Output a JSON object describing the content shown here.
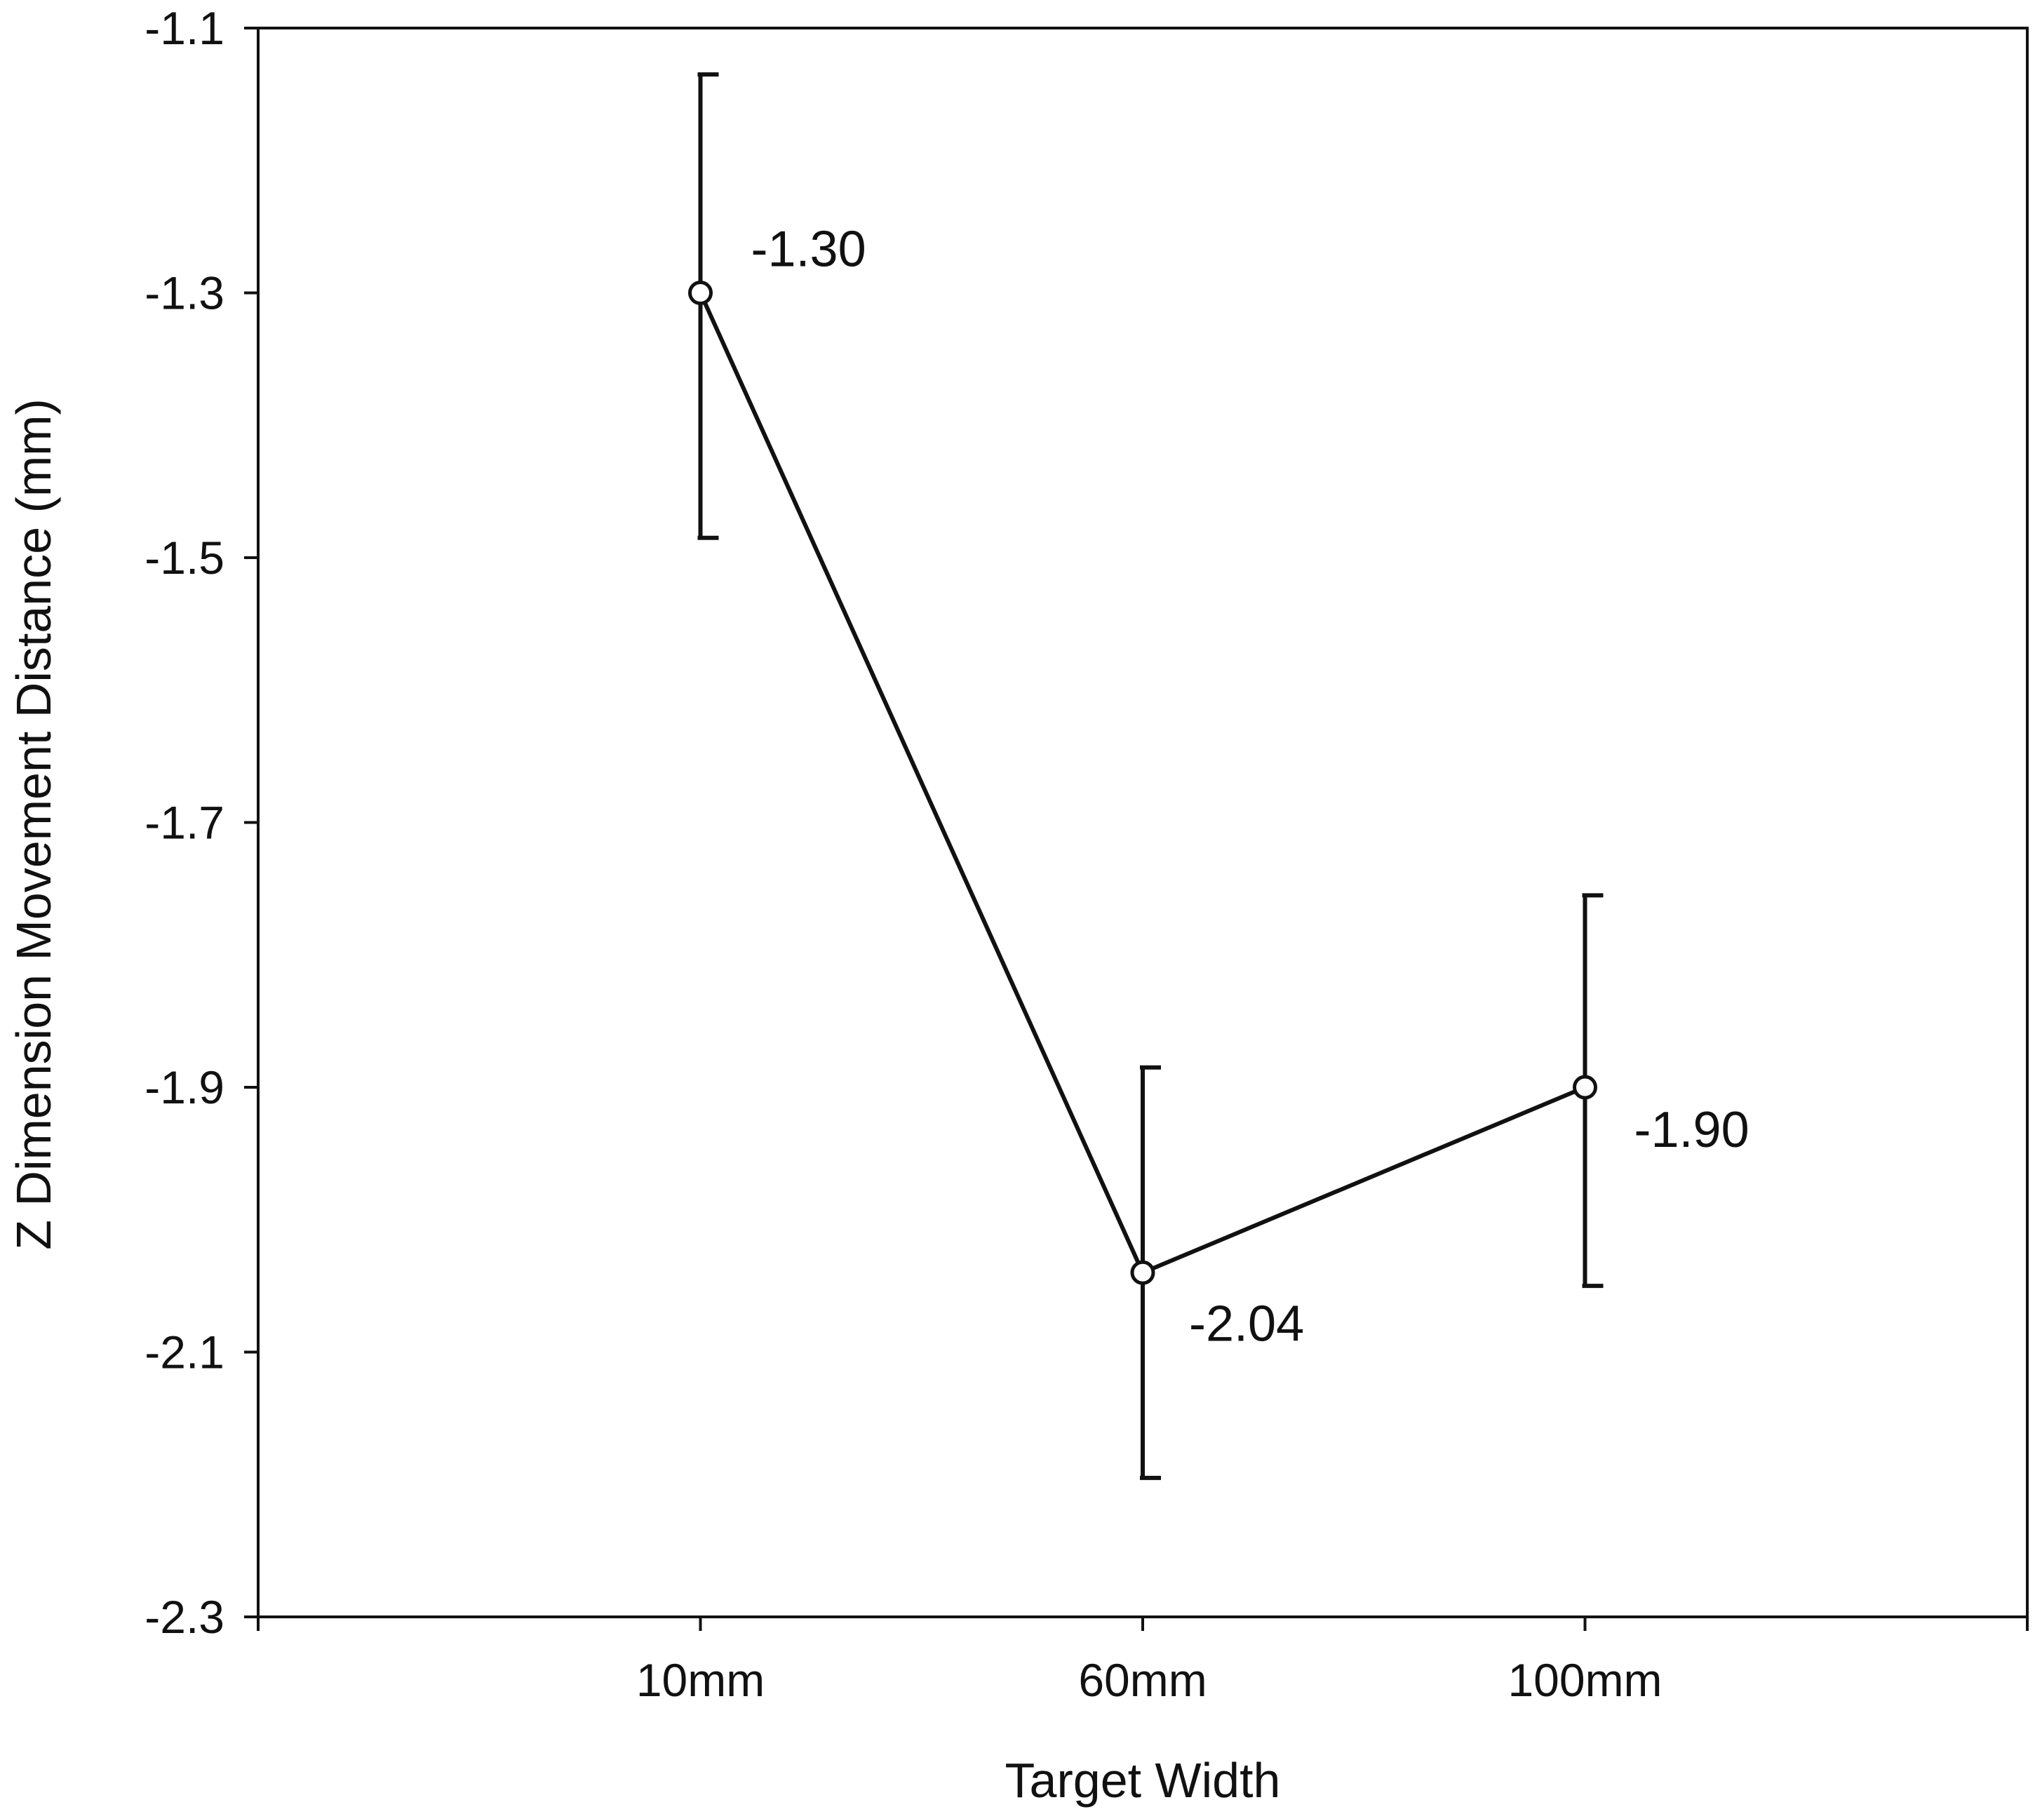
{
  "chart_data": {
    "type": "line",
    "title": "",
    "xlabel": "Target Width",
    "ylabel": "Z Dimension Movement Distance (mm)",
    "categories": [
      "10mm",
      "60mm",
      "100mm"
    ],
    "series": [
      {
        "name": "Z Dimension Movement Distance",
        "values": [
          -1.3,
          -2.04,
          -1.9
        ],
        "error_low": [
          -1.485,
          -2.195,
          -2.05
        ],
        "error_high": [
          -1.135,
          -1.885,
          -1.755
        ],
        "labels": [
          "-1.30",
          "-2.04",
          "-1.90"
        ]
      }
    ],
    "ylim": [
      -2.3,
      -1.1
    ],
    "yticks": [
      -1.1,
      -1.3,
      -1.5,
      -1.7,
      -1.9,
      -2.1,
      -2.3
    ],
    "ytick_labels": [
      "-1.1",
      "-1.3",
      "-1.5",
      "-1.7",
      "-1.9",
      "-2.1",
      "-2.3"
    ],
    "grid": false,
    "legend": "none",
    "colors": {
      "line": "#111111",
      "marker_fill": "#ffffff",
      "axis": "#111111"
    }
  }
}
